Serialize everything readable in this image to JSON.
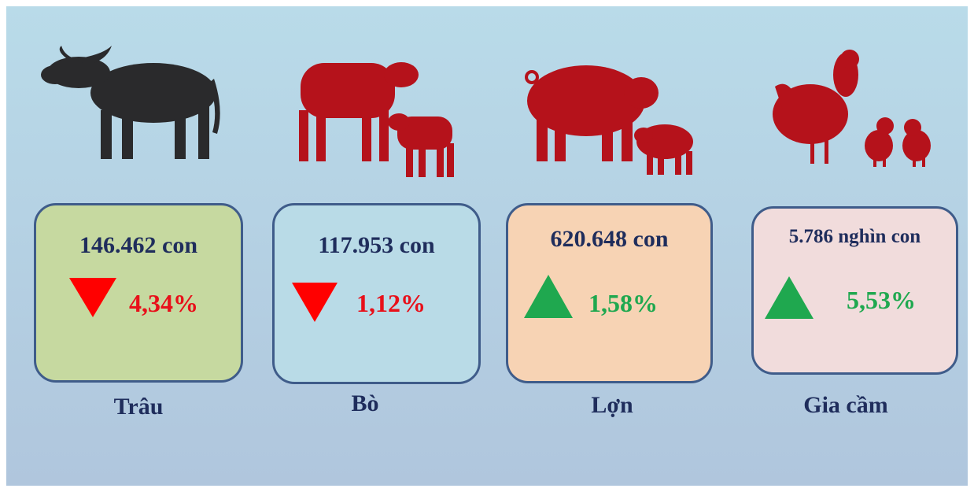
{
  "cards": [
    {
      "count": "146.462 con",
      "change": "4,34%",
      "label": "Trâu"
    },
    {
      "count": "117.953 con",
      "change": "1,12%",
      "label": "Bò"
    },
    {
      "count": "620.648 con",
      "change": "1,58%",
      "label": "Lợn"
    },
    {
      "count": "5.786 nghìn con",
      "change": "5,53%",
      "label": "Gia cầm"
    }
  ]
}
